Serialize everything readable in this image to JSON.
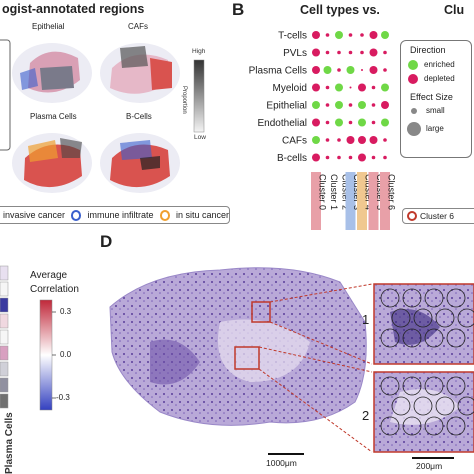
{
  "panels": {
    "A": {
      "title_fragment": "ogist-annotated regions",
      "spots": [
        {
          "label": "Epithelial"
        },
        {
          "label": "CAFs"
        },
        {
          "label": "Plasma Cells"
        },
        {
          "label": "B-Cells"
        }
      ],
      "colorbar": {
        "high": "High",
        "low": "Low",
        "label": "Proportion"
      },
      "legend": [
        {
          "label": "invasive cancer",
          "color": "#d9534f"
        },
        {
          "label": "immune infiltrate",
          "color": "#3a5fcd"
        },
        {
          "label": "in situ cancer",
          "color": "#f0a030"
        }
      ]
    },
    "B": {
      "letter": "B",
      "title_fragment": "Cell types vs.",
      "title_fragment_right": "Clu",
      "chart_data": {
        "type": "dot",
        "rows": [
          "T-cells",
          "PVLs",
          "Plasma Cells",
          "Myeloid",
          "Epithelial",
          "Endothelial",
          "CAFs",
          "B-cells"
        ],
        "columns": [
          "Cluster 0",
          "Cluster 1",
          "Cluster 2",
          "Cluster 3",
          "Cluster 4",
          "Cluster 5",
          "Cluster 6"
        ],
        "legend": {
          "direction_title": "Direction",
          "enriched": "enriched",
          "depleted": "depleted",
          "effect_title": "Effect Size",
          "small": "small",
          "large": "large"
        },
        "colors": {
          "enriched": "#6fd846",
          "depleted": "#d81b60"
        }
      },
      "right_fragment": "Cluster 6"
    },
    "C": {
      "legend_title_1": "Average",
      "legend_title_2": "Correlation",
      "ticks": [
        "0.3",
        "0.0",
        "-0.3"
      ],
      "rotated_label": "Plasma Cells"
    },
    "D": {
      "letter": "D",
      "inset_1": "1",
      "inset_2": "2",
      "scalebar_main": "1000μm",
      "scalebar_inset": "200μm"
    }
  }
}
